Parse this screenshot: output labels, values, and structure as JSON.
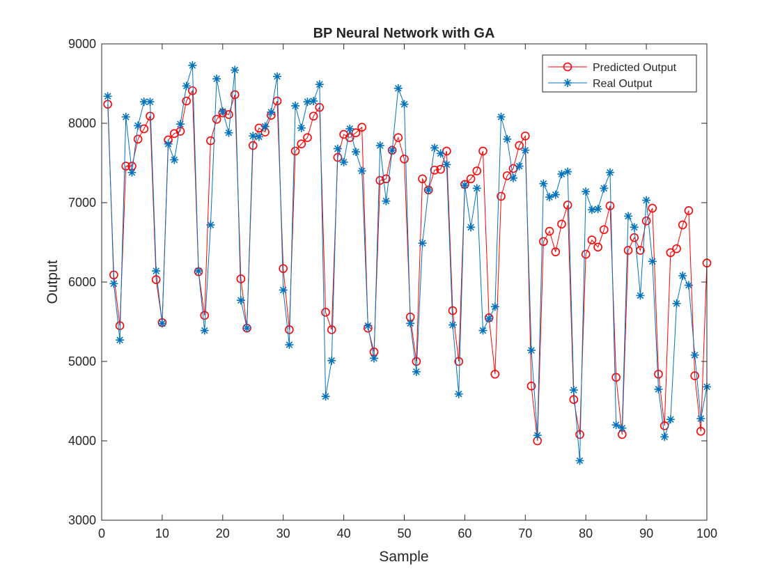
{
  "chart_data": {
    "type": "line",
    "title": "BP Neural Network with GA",
    "xlabel": "Sample",
    "ylabel": "Output",
    "xlim": [
      0,
      100
    ],
    "ylim": [
      3000,
      9000
    ],
    "xticks": [
      0,
      10,
      20,
      30,
      40,
      50,
      60,
      70,
      80,
      90,
      100
    ],
    "yticks": [
      3000,
      4000,
      5000,
      6000,
      7000,
      8000,
      9000
    ],
    "grid": false,
    "legend_position": "top-right",
    "x": [
      1,
      2,
      3,
      4,
      5,
      6,
      7,
      8,
      9,
      10,
      11,
      12,
      13,
      14,
      15,
      16,
      17,
      18,
      19,
      20,
      21,
      22,
      23,
      24,
      25,
      26,
      27,
      28,
      29,
      30,
      31,
      32,
      33,
      34,
      35,
      36,
      37,
      38,
      39,
      40,
      41,
      42,
      43,
      44,
      45,
      46,
      47,
      48,
      49,
      50,
      51,
      52,
      53,
      54,
      55,
      56,
      57,
      58,
      59,
      60,
      61,
      62,
      63,
      64,
      65,
      66,
      67,
      68,
      69,
      70,
      71,
      72,
      73,
      74,
      75,
      76,
      77,
      78,
      79,
      80,
      81,
      82,
      83,
      84,
      85,
      86,
      87,
      88,
      89,
      90,
      91,
      92,
      93,
      94,
      95,
      96,
      97,
      98,
      99,
      100
    ],
    "series": [
      {
        "name": "Predicted Output",
        "color": "#ff0000",
        "marker": "circle",
        "values": [
          8240,
          6090,
          5450,
          7460,
          7460,
          7800,
          7930,
          8090,
          6030,
          5490,
          7790,
          7870,
          7900,
          8280,
          8410,
          6130,
          5580,
          7780,
          8050,
          8130,
          8110,
          8360,
          6040,
          5420,
          7720,
          7940,
          7890,
          8100,
          8280,
          6170,
          5400,
          7650,
          7740,
          7820,
          8090,
          8200,
          5620,
          5400,
          7570,
          7860,
          7820,
          7880,
          7950,
          5420,
          5120,
          7280,
          7300,
          7660,
          7820,
          7550,
          5560,
          5000,
          7300,
          7160,
          7410,
          7420,
          7650,
          5640,
          5000,
          7230,
          7300,
          7400,
          7650,
          5550,
          4840,
          7080,
          7340,
          7430,
          7720,
          7840,
          4690,
          4000,
          6510,
          6640,
          6380,
          6730,
          6970,
          4520,
          4080,
          6350,
          6530,
          6440,
          6660,
          6960,
          4800,
          4080,
          6400,
          6560,
          6400,
          6770,
          6930,
          4840,
          4190,
          6370,
          6420,
          6720,
          6900,
          4820,
          4120,
          6240
        ]
      },
      {
        "name": "Real Output",
        "color": "#0072bd",
        "marker": "star",
        "values": [
          8340,
          5980,
          5270,
          8080,
          7380,
          7970,
          8270,
          8270,
          6140,
          5480,
          7740,
          7540,
          7990,
          8470,
          8730,
          6140,
          5390,
          6720,
          8560,
          8150,
          7880,
          8670,
          5770,
          5420,
          7840,
          7830,
          7960,
          8140,
          8590,
          5900,
          5210,
          8220,
          7940,
          8270,
          8280,
          8490,
          4560,
          5010,
          7680,
          7510,
          7930,
          7640,
          7400,
          5450,
          5040,
          7720,
          7020,
          7660,
          8440,
          8240,
          5480,
          4870,
          6490,
          7160,
          7690,
          7620,
          7480,
          5460,
          4590,
          7220,
          6690,
          7180,
          5390,
          5540,
          5690,
          8080,
          7800,
          7310,
          7460,
          7660,
          5140,
          4070,
          7240,
          7070,
          7100,
          7360,
          7390,
          4640,
          3750,
          7140,
          6910,
          6920,
          7180,
          7380,
          4200,
          4160,
          6830,
          6690,
          5830,
          7030,
          6260,
          4650,
          4050,
          4270,
          5730,
          6080,
          5960,
          5080,
          4280,
          4680
        ]
      }
    ]
  }
}
